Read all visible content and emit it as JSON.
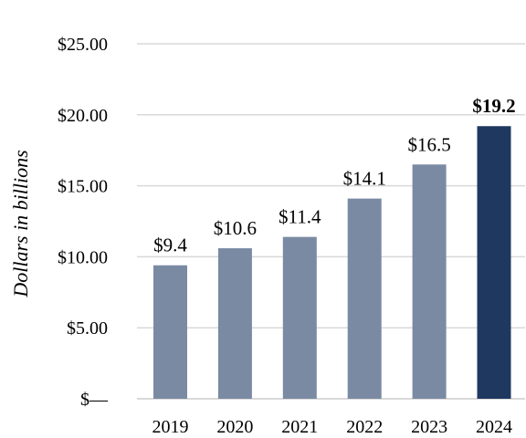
{
  "chart_data": {
    "type": "bar",
    "title": "",
    "xlabel": "",
    "ylabel": "Dollars in billions",
    "categories": [
      "2019",
      "2020",
      "2021",
      "2022",
      "2023",
      "2024"
    ],
    "values": [
      9.4,
      10.6,
      11.4,
      14.1,
      16.5,
      19.2
    ],
    "data_labels": [
      "$9.4",
      "$10.6",
      "$11.4",
      "$14.1",
      "$16.5",
      "$19.2"
    ],
    "highlight_index": 5,
    "ylim": [
      0,
      25
    ],
    "yticks": [
      0,
      5,
      10,
      15,
      20,
      25
    ],
    "ytick_labels": [
      "$—",
      "$5.00",
      "$10.00",
      "$15.00",
      "$20.00",
      "$25.00"
    ],
    "grid": true,
    "legend": "none",
    "colors": {
      "bar": "#7a8aa3",
      "highlight": "#1f3860",
      "grid": "#d9d9d9"
    }
  }
}
